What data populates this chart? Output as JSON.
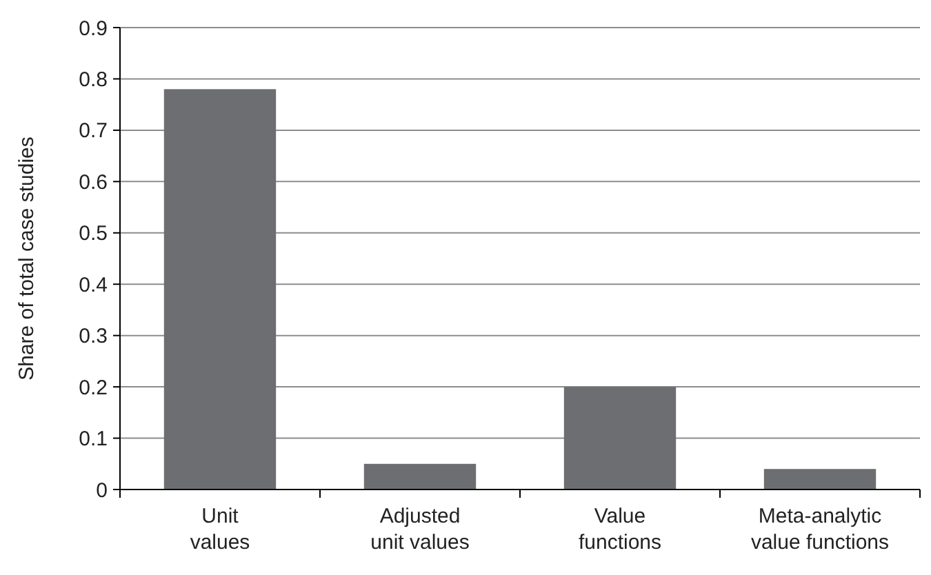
{
  "chart_data": {
    "type": "bar",
    "ylabel": "Share of total case studies",
    "categories": [
      "Unit values",
      "Adjusted unit values",
      "Value functions",
      "Meta-analytic value functions"
    ],
    "values": [
      0.78,
      0.05,
      0.2,
      0.04
    ],
    "color": "#6d6e71",
    "ylim": [
      0,
      0.9
    ],
    "yticks": [
      0,
      0.1,
      0.2,
      0.3,
      0.4,
      0.5,
      0.6,
      0.7,
      0.8,
      0.9
    ],
    "grid": "y"
  }
}
